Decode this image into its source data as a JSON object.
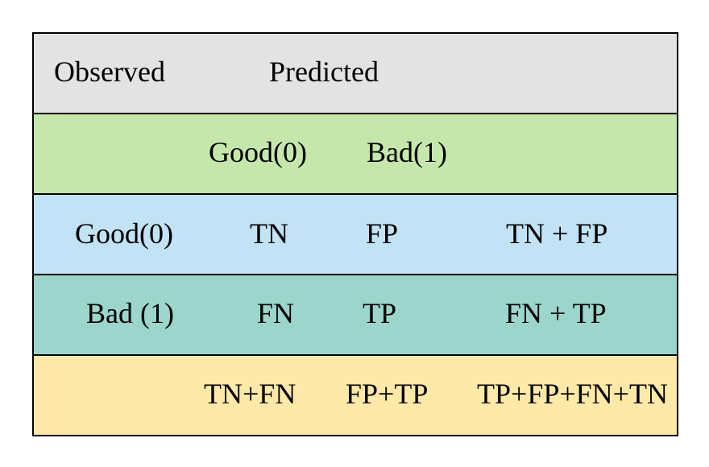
{
  "table": {
    "header_row": {
      "observed_label": "Observed",
      "predicted_label": "Predicted",
      "color": "#e3e3e3"
    },
    "predicted_classes_row": {
      "good_label": "Good(0)",
      "bad_label": "Bad(1)",
      "color": "#c6e7ac"
    },
    "good_row": {
      "observed_label": "Good(0)",
      "predicted_good": "TN",
      "predicted_bad": "FP",
      "row_total": "TN + FP",
      "color": "#c2e2f5"
    },
    "bad_row": {
      "observed_label": "Bad (1)",
      "predicted_good": "FN",
      "predicted_bad": "TP",
      "row_total": "FN + TP",
      "color": "#9bd5cb"
    },
    "totals_row": {
      "predicted_good_total": "TN+FN",
      "predicted_bad_total": "FP+TP",
      "grand_total": "TP+FP+FN+TN",
      "color": "#ffe9a8"
    }
  }
}
